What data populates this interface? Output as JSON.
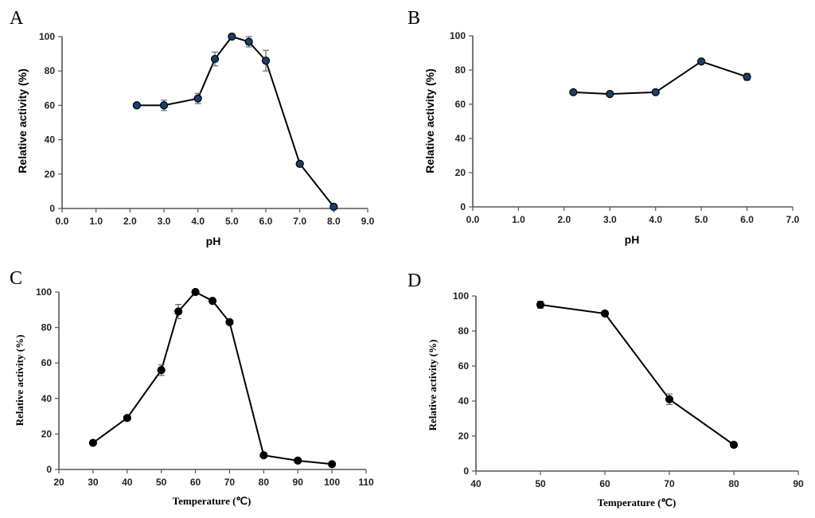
{
  "chart_data": [
    {
      "panel": "A",
      "type": "line",
      "xlabel": "pH",
      "ylabel": "Relative  activity (%)",
      "xlim": [
        0,
        9
      ],
      "ylim": [
        0,
        100
      ],
      "xticks": [
        "0.0",
        "1.0",
        "2.0",
        "3.0",
        "4.0",
        "5.0",
        "6.0",
        "7.0",
        "8.0",
        "9.0"
      ],
      "yticks": [
        "0",
        "20",
        "40",
        "60",
        "80",
        "100"
      ],
      "marker_color": "#1a3f6b",
      "x": [
        2.2,
        3.0,
        4.0,
        4.5,
        5.0,
        5.5,
        6.0,
        7.0,
        8.0
      ],
      "y": [
        60,
        60,
        64,
        87,
        100,
        97,
        86,
        26,
        1
      ],
      "err": [
        1,
        3,
        3,
        4,
        0,
        3,
        6,
        1,
        0
      ]
    },
    {
      "panel": "B",
      "type": "line",
      "xlabel": "pH",
      "ylabel": "Relative activity (%)",
      "xlim": [
        0,
        7
      ],
      "ylim": [
        0,
        100
      ],
      "xticks": [
        "0.0",
        "1.0",
        "2.0",
        "3.0",
        "4.0",
        "5.0",
        "6.0",
        "7.0"
      ],
      "yticks": [
        "0",
        "20",
        "40",
        "60",
        "80",
        "100"
      ],
      "marker_color": "#1a3f6b",
      "x": [
        2.2,
        3.0,
        4.0,
        5.0,
        6.0
      ],
      "y": [
        67,
        66,
        67,
        85,
        76
      ],
      "err": [
        1,
        1,
        1,
        1,
        2
      ]
    },
    {
      "panel": "C",
      "type": "line",
      "xlabel": "Temperature (℃)",
      "ylabel": "Relative activity (%)",
      "xlim": [
        20,
        110
      ],
      "ylim": [
        0,
        100
      ],
      "xticks": [
        "20",
        "30",
        "40",
        "50",
        "60",
        "70",
        "80",
        "90",
        "100",
        "110"
      ],
      "yticks": [
        "0",
        "20",
        "40",
        "60",
        "80",
        "100"
      ],
      "marker_color": "#000000",
      "x": [
        30,
        40,
        50,
        55,
        60,
        65,
        70,
        80,
        90,
        100
      ],
      "y": [
        15,
        29,
        56,
        89,
        100,
        95,
        83,
        8,
        5,
        3
      ],
      "err": [
        0,
        0,
        3,
        4,
        0,
        1,
        1,
        0,
        0,
        0
      ]
    },
    {
      "panel": "D",
      "type": "line",
      "xlabel": "Temperature (℃)",
      "ylabel": "Relative activity (%)",
      "xlim": [
        40,
        90
      ],
      "ylim": [
        0,
        100
      ],
      "xticks": [
        "40",
        "50",
        "60",
        "70",
        "80",
        "90"
      ],
      "yticks": [
        "0",
        "20",
        "40",
        "60",
        "80",
        "100"
      ],
      "marker_color": "#000000",
      "x": [
        50,
        60,
        70,
        80
      ],
      "y": [
        95,
        90,
        41,
        15
      ],
      "err": [
        2,
        1,
        3,
        0
      ]
    }
  ]
}
